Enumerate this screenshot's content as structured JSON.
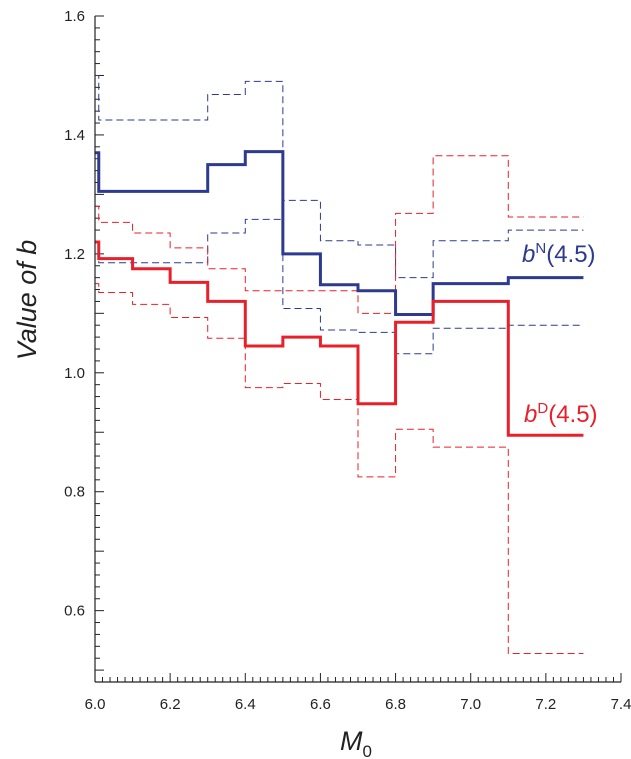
{
  "chart_data": {
    "type": "line",
    "ylabel": "Value of b",
    "xlabel": "M",
    "xlabel_sub": "0",
    "xlim": [
      6.0,
      7.4
    ],
    "ylim": [
      0.48,
      1.6
    ],
    "x_ticks": [
      "6.0",
      "6.2",
      "6.4",
      "6.6",
      "6.8",
      "7.0",
      "7.2",
      "7.4"
    ],
    "y_ticks": [
      "0.6",
      "0.8",
      "1.0",
      "1.2",
      "1.4",
      "1.6"
    ],
    "minor_tick_step": 0.02,
    "grid": false,
    "x": [
      6.0,
      6.01,
      6.1,
      6.2,
      6.3,
      6.4,
      6.5,
      6.6,
      6.7,
      6.8,
      6.9,
      7.0,
      7.1,
      7.3
    ],
    "series": [
      {
        "name": "bN(4.5)",
        "label_base": "b",
        "label_sup": "N",
        "label_tail": "(4.5)",
        "color": "#2d3a8f",
        "style": "solid",
        "values": [
          1.37,
          1.305,
          1.305,
          1.305,
          1.35,
          1.372,
          1.2,
          1.148,
          1.138,
          1.098,
          1.15,
          1.15,
          1.16,
          1.16
        ]
      },
      {
        "name": "bN upper bound",
        "color": "#2d3a8f",
        "style": "dashed",
        "values": [
          1.5,
          1.425,
          1.425,
          1.425,
          1.468,
          1.49,
          1.29,
          1.222,
          1.215,
          1.16,
          1.222,
          1.222,
          1.24,
          1.24
        ]
      },
      {
        "name": "bN lower bound",
        "color": "#2d3a8f",
        "style": "dashed",
        "values": [
          1.2,
          1.185,
          1.185,
          1.185,
          1.235,
          1.258,
          1.108,
          1.072,
          1.068,
          1.032,
          1.075,
          1.075,
          1.08,
          1.08
        ]
      },
      {
        "name": "bD(4.5)",
        "label_base": "b",
        "label_sup": "D",
        "label_tail": "(4.5)",
        "color": "#e8202a",
        "style": "solid",
        "values": [
          1.22,
          1.192,
          1.175,
          1.152,
          1.12,
          1.045,
          1.06,
          1.045,
          0.948,
          1.085,
          1.12,
          1.12,
          0.895,
          0.895
        ]
      },
      {
        "name": "bD upper bound",
        "color": "#e8202a",
        "style": "dashed",
        "values": [
          1.28,
          1.253,
          1.235,
          1.21,
          1.175,
          1.138,
          1.138,
          1.138,
          1.1,
          1.268,
          1.365,
          1.365,
          1.262,
          1.262
        ]
      },
      {
        "name": "bD lower bound",
        "color": "#e8202a",
        "style": "dashed",
        "values": [
          1.15,
          1.135,
          1.115,
          1.093,
          1.058,
          0.975,
          0.982,
          0.955,
          0.825,
          0.905,
          0.875,
          0.875,
          0.528,
          0.528
        ]
      }
    ]
  }
}
